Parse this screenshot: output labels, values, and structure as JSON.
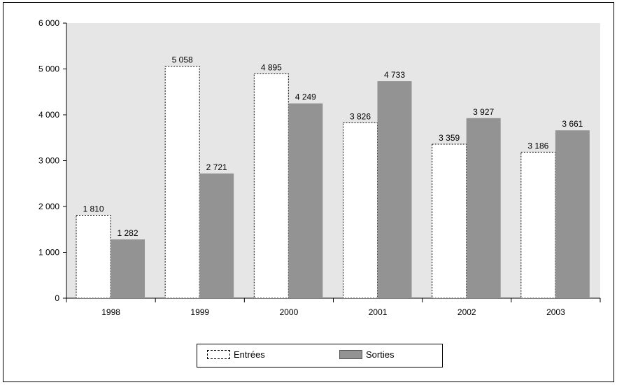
{
  "chart_data": {
    "type": "bar",
    "categories": [
      "1998",
      "1999",
      "2000",
      "2001",
      "2002",
      "2003"
    ],
    "series": [
      {
        "name": "Entrées",
        "values": [
          1810,
          5058,
          4895,
          3826,
          3359,
          3186
        ],
        "labels": [
          "1 810",
          "5 058",
          "4 895",
          "3 826",
          "3 359",
          "3 186"
        ],
        "fill": "#ffffff",
        "stroke": "dotted"
      },
      {
        "name": "Sorties",
        "values": [
          1282,
          2721,
          4249,
          4733,
          3927,
          3661
        ],
        "labels": [
          "1 282",
          "2 721",
          "4 249",
          "4 733",
          "3 927",
          "3 661"
        ],
        "fill": "#939393",
        "stroke": "solid"
      }
    ],
    "yticks": [
      0,
      1000,
      2000,
      3000,
      4000,
      5000,
      6000
    ],
    "ytick_labels": [
      "0",
      "1 000",
      "2 000",
      "3 000",
      "4 000",
      "5 000",
      "6 000"
    ],
    "ylim": [
      0,
      6000
    ],
    "title": "",
    "xlabel": "",
    "ylabel": "",
    "grid": false,
    "plot_background": "#e6e6e6",
    "legend_position": "bottom-center"
  },
  "legend": {
    "entrees_label": "Entrées",
    "sorties_label": "Sorties"
  }
}
